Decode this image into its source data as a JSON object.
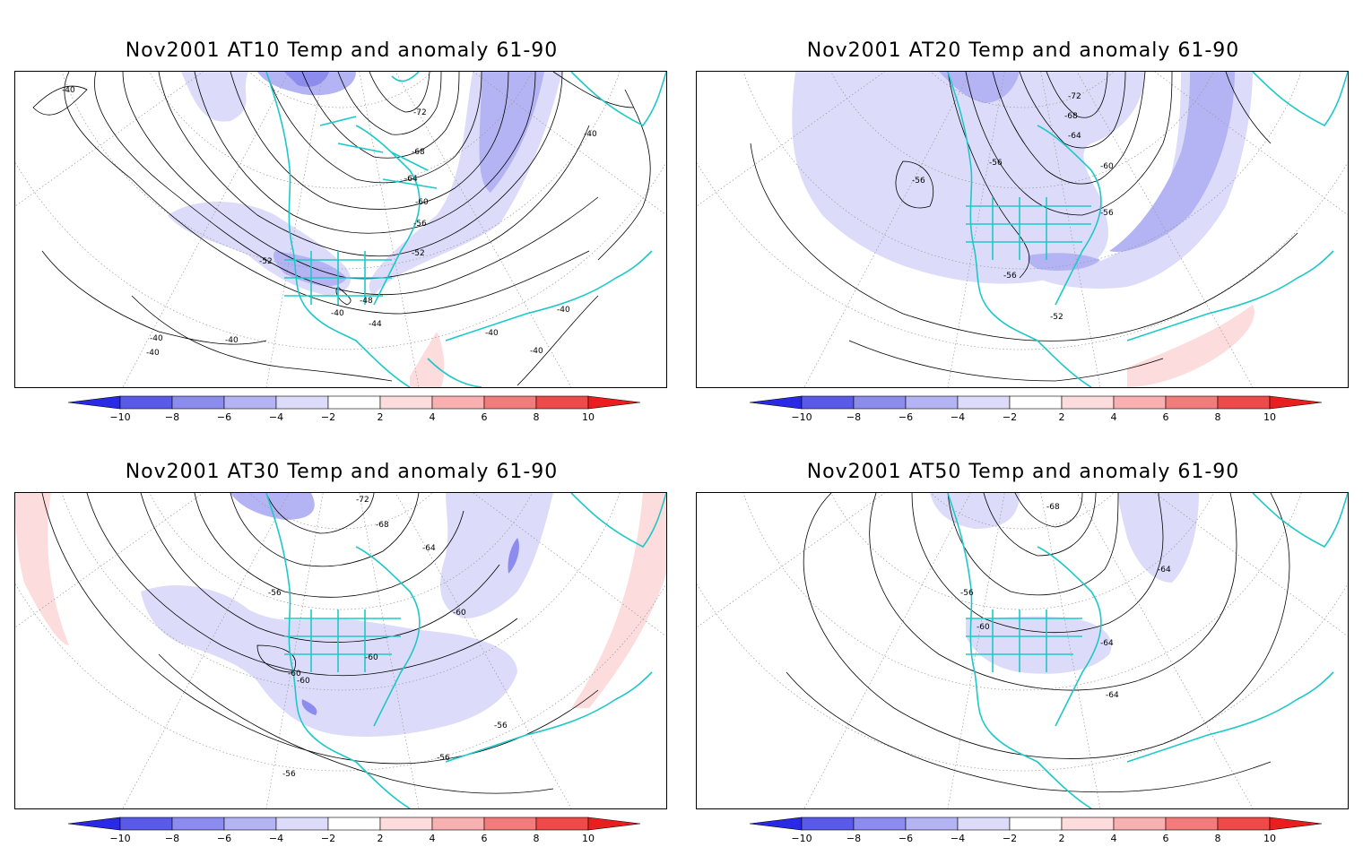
{
  "colorbar": {
    "ticks": [
      "−10",
      "−8",
      "−6",
      "−4",
      "−2",
      "2",
      "4",
      "6",
      "8",
      "10"
    ],
    "colors": [
      "#2a2ae6",
      "#5a5ae8",
      "#8c8cee",
      "#b4b4f4",
      "#dcdcfa",
      "#ffffff",
      "#fcdcdc",
      "#f8b0b0",
      "#f27c7c",
      "#ee4a4a",
      "#ea1e1e"
    ]
  },
  "panels": [
    {
      "title": "Nov2001 AT10 Temp and anomaly 61-90",
      "contour_labels": [
        "-40",
        "-72",
        "-68",
        "-64",
        "-60",
        "-56",
        "-52",
        "-52",
        "-48",
        "-44",
        "-40",
        "-40",
        "-40",
        "-40",
        "-40",
        "-40",
        "-40",
        "-40"
      ],
      "anomaly": "cold over north pacific/eastern canada"
    },
    {
      "title": "Nov2001 AT20 Temp and anomaly 61-90",
      "contour_labels": [
        "-72",
        "-68",
        "-64",
        "-60",
        "-56",
        "-56",
        "-56",
        "-56",
        "-52"
      ],
      "anomaly": "cold broad band"
    },
    {
      "title": "Nov2001 AT30 Temp and anomaly 61-90",
      "contour_labels": [
        "-72",
        "-68",
        "-64",
        "-56",
        "-60",
        "-60",
        "-60",
        "-60",
        "-56",
        "-56",
        "-56"
      ],
      "anomaly": "cold over north america, warm on edges"
    },
    {
      "title": "Nov2001 AT50 Temp and anomaly 61-90",
      "contour_labels": [
        "-68",
        "-64",
        "-56",
        "-60",
        "-64",
        "-64"
      ],
      "anomaly": "weak cold"
    }
  ]
}
